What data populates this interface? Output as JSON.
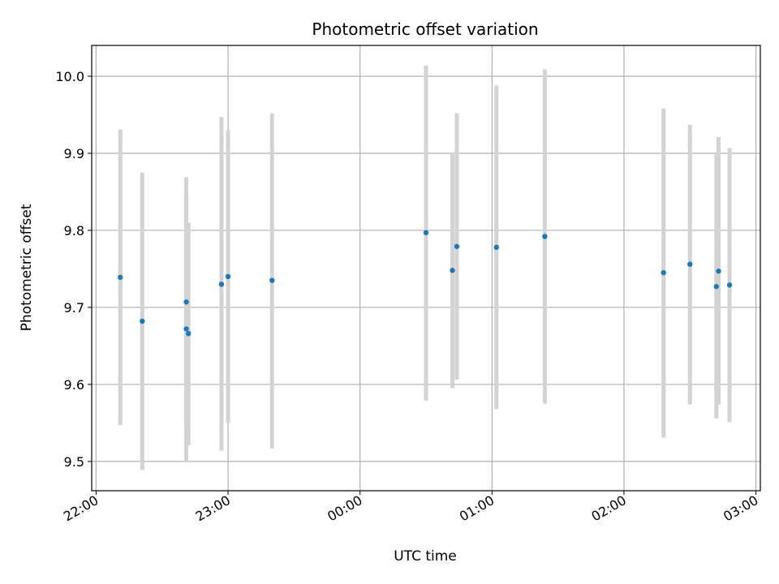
{
  "chart_data": {
    "type": "scatter",
    "title": "Photometric offset variation",
    "xlabel": "UTC time",
    "ylabel": "Photometric offset",
    "grid": true,
    "x_tick_labels": [
      "22:00",
      "23:00",
      "00:00",
      "01:00",
      "02:00",
      "03:00"
    ],
    "y_tick_labels": [
      "9.5",
      "9.6",
      "9.7",
      "9.8",
      "9.9",
      "10.0"
    ],
    "y_ticks": [
      9.5,
      9.6,
      9.7,
      9.8,
      9.9,
      10.0
    ],
    "xlim": [
      "21:58",
      "03:02"
    ],
    "ylim": [
      9.462,
      10.04
    ],
    "colors": {
      "points": "#1f77b4",
      "error_bars": "#d3d3d3",
      "grid": "#b0b0b0"
    },
    "points": [
      {
        "x": "22:11",
        "y": 9.739,
        "ylow": 9.547,
        "yhigh": 9.931
      },
      {
        "x": "22:21",
        "y": 9.682,
        "ylow": 9.489,
        "yhigh": 9.875
      },
      {
        "x": "22:41",
        "y": 9.707,
        "ylow": 9.547,
        "yhigh": 9.869
      },
      {
        "x": "22:41",
        "y": 9.672,
        "ylow": 9.5,
        "yhigh": 9.845
      },
      {
        "x": "22:42",
        "y": 9.666,
        "ylow": 9.521,
        "yhigh": 9.81
      },
      {
        "x": "22:57",
        "y": 9.73,
        "ylow": 9.514,
        "yhigh": 9.947
      },
      {
        "x": "23:00",
        "y": 9.74,
        "ylow": 9.55,
        "yhigh": 9.93
      },
      {
        "x": "23:20",
        "y": 9.735,
        "ylow": 9.517,
        "yhigh": 9.952
      },
      {
        "x": "00:30",
        "y": 9.797,
        "ylow": 9.579,
        "yhigh": 10.014
      },
      {
        "x": "00:42",
        "y": 9.748,
        "ylow": 9.595,
        "yhigh": 9.9
      },
      {
        "x": "00:44",
        "y": 9.779,
        "ylow": 9.606,
        "yhigh": 9.952
      },
      {
        "x": "01:02",
        "y": 9.778,
        "ylow": 9.568,
        "yhigh": 9.988
      },
      {
        "x": "01:24",
        "y": 9.792,
        "ylow": 9.575,
        "yhigh": 10.009
      },
      {
        "x": "02:18",
        "y": 9.745,
        "ylow": 9.531,
        "yhigh": 9.958
      },
      {
        "x": "02:30",
        "y": 9.756,
        "ylow": 9.574,
        "yhigh": 9.937
      },
      {
        "x": "02:42",
        "y": 9.727,
        "ylow": 9.556,
        "yhigh": 9.899
      },
      {
        "x": "02:43",
        "y": 9.747,
        "ylow": 9.574,
        "yhigh": 9.921
      },
      {
        "x": "02:48",
        "y": 9.729,
        "ylow": 9.551,
        "yhigh": 9.907
      }
    ]
  }
}
